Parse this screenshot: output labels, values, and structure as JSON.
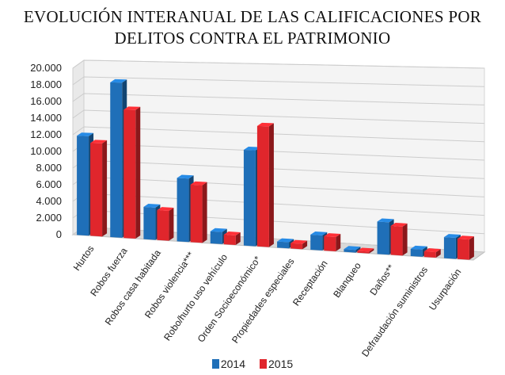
{
  "chart_data": {
    "type": "bar",
    "title": "EVOLUCIÓN INTERANUAL DE LAS CALIFICACIONES POR DELITOS CONTRA EL PATRIMONIO",
    "title_lines": [
      "EVOLUCIÓN INTERANUAL DE LAS CALIFICACIONES POR",
      "DELITOS CONTRA EL PATRIMONIO"
    ],
    "categories": [
      "Hurtos",
      "Robos fuerza",
      "Robos casa habitada",
      "Robos violencia***",
      "Robo/hurto uso vehículo",
      "Orden Socioeconómico*",
      "Propiedades especiales",
      "Receptación",
      "Blanqueo",
      "Daños**",
      "Defraudación suministros",
      "Usurpación"
    ],
    "series": [
      {
        "name": "2014",
        "color": "#1f6fb8",
        "values": [
          11900,
          18400,
          3800,
          7400,
          1400,
          11000,
          700,
          1700,
          300,
          3600,
          800,
          2300
        ]
      },
      {
        "name": "2015",
        "color": "#e0262c",
        "values": [
          11100,
          15200,
          3500,
          6700,
          1100,
          13800,
          600,
          1600,
          200,
          3200,
          600,
          2200
        ]
      }
    ],
    "y_ticks": [
      "0",
      "2.000",
      "4.000",
      "6.000",
      "8.000",
      "10.000",
      "12.000",
      "14.000",
      "16.000",
      "18.000",
      "20.000"
    ],
    "ylim": [
      0,
      20000
    ],
    "grid": true,
    "legend_position": "bottom"
  }
}
